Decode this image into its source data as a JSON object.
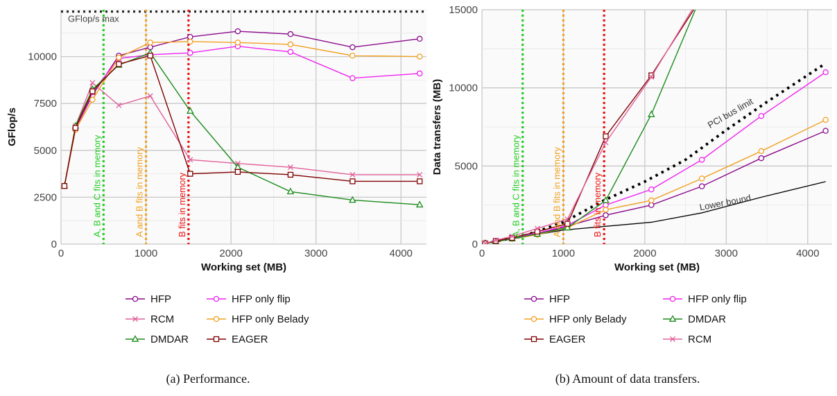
{
  "chart_data": [
    {
      "type": "line",
      "caption": "(a) Performance.",
      "xlabel": "Working set (MB)",
      "ylabel": "GFlop/s",
      "xlim": [
        0,
        4300
      ],
      "ylim": [
        0,
        12500
      ],
      "xticks": [
        0,
        1000,
        2000,
        3000,
        4000
      ],
      "yticks": [
        0,
        2500,
        5000,
        7500,
        10000
      ],
      "ytick_labels": [
        "0",
        "2500",
        "5000",
        "7500",
        "10000"
      ],
      "grid": true,
      "legend_placement": "below",
      "annotations": [
        {
          "text": "GFlop/s max",
          "kind": "hline",
          "y": 12400,
          "color": "#222222"
        },
        {
          "text": "A, B and C fits in memory",
          "kind": "vline",
          "x": 500,
          "color": "#22cc22"
        },
        {
          "text": "A and B fits in memory",
          "kind": "vline",
          "x": 1000,
          "color": "#f0a020"
        },
        {
          "text": "B fits in memory",
          "kind": "vline",
          "x": 1500,
          "color": "#ee1111"
        }
      ],
      "legend_order": [
        "HFP",
        "HFP only flip",
        "RCM",
        "HFP only Belady",
        "DMDAR",
        "EAGER"
      ],
      "series": [
        {
          "name": "HFP",
          "color": "#8b0a8b",
          "marker": "circle",
          "x": [
            40,
            170,
            370,
            680,
            1050,
            1520,
            2080,
            2700,
            3430,
            4220
          ],
          "y": [
            3100,
            6150,
            7950,
            10050,
            10500,
            11050,
            11350,
            11200,
            10500,
            10950
          ]
        },
        {
          "name": "HFP only flip",
          "color": "#ee22ee",
          "marker": "circle",
          "x": [
            40,
            170,
            370,
            680,
            1050,
            1520,
            2080,
            2700,
            3430,
            4220
          ],
          "y": [
            3100,
            6100,
            8100,
            9900,
            10100,
            10200,
            10550,
            10250,
            8850,
            9100
          ]
        },
        {
          "name": "RCM",
          "color": "#e0609a",
          "marker": "x",
          "x": [
            40,
            170,
            370,
            680,
            1050,
            1520,
            2080,
            2700,
            3430,
            4220
          ],
          "y": [
            3100,
            6300,
            8600,
            7400,
            7900,
            4500,
            4300,
            4100,
            3700,
            3700
          ]
        },
        {
          "name": "HFP only Belady",
          "color": "#f0a020",
          "marker": "circle",
          "x": [
            40,
            170,
            370,
            680,
            1050,
            1520,
            2080,
            2700,
            3430,
            4220
          ],
          "y": [
            3100,
            6100,
            7700,
            9950,
            10750,
            10800,
            10750,
            10650,
            10050,
            10000
          ]
        },
        {
          "name": "DMDAR",
          "color": "#1a8a1a",
          "marker": "triangle",
          "x": [
            40,
            170,
            370,
            680,
            1050,
            1520,
            2080,
            2700,
            3430,
            4220
          ],
          "y": [
            3100,
            6300,
            8250,
            9550,
            10200,
            7100,
            4100,
            2800,
            2350,
            2100
          ]
        },
        {
          "name": "EAGER",
          "color": "#800000",
          "marker": "square",
          "x": [
            40,
            170,
            370,
            680,
            1050,
            1520,
            2080,
            2700,
            3430,
            4220
          ],
          "y": [
            3100,
            6200,
            8150,
            9600,
            10050,
            3750,
            3850,
            3700,
            3350,
            3350
          ]
        }
      ]
    },
    {
      "type": "line",
      "caption": "(b) Amount of data transfers.",
      "xlabel": "Working set (MB)",
      "ylabel": "Data transfers (MB)",
      "xlim": [
        0,
        4300
      ],
      "ylim": [
        0,
        15000
      ],
      "xticks": [
        0,
        1000,
        2000,
        3000,
        4000
      ],
      "yticks": [
        0,
        5000,
        10000,
        15000
      ],
      "ytick_labels": [
        "0",
        "5000",
        "10000",
        "15000"
      ],
      "grid": true,
      "legend_placement": "below",
      "annotations": [
        {
          "text": "A, B and C fits in memory",
          "kind": "vline",
          "x": 500,
          "color": "#22cc22"
        },
        {
          "text": "A and B fits in memory",
          "kind": "vline",
          "x": 1000,
          "color": "#f0a020"
        },
        {
          "text": "B fits in memory",
          "kind": "vline",
          "x": 1500,
          "color": "#ee1111"
        },
        {
          "text": "PCI bus limit",
          "kind": "curve",
          "color": "#000000",
          "x": [
            40,
            500,
            1000,
            1500,
            2000,
            2500,
            3000,
            3500,
            4200
          ],
          "y": [
            60,
            500,
            1400,
            2800,
            4000,
            5400,
            7300,
            9100,
            11500
          ]
        },
        {
          "text": "Lower bound",
          "kind": "curve",
          "color": "#000000",
          "x": [
            40,
            1000,
            2080,
            2700,
            3430,
            4220
          ],
          "y": [
            40,
            900,
            1400,
            2000,
            3000,
            4000
          ]
        }
      ],
      "legend_order": [
        "HFP",
        "HFP only flip",
        "HFP only Belady",
        "DMDAR",
        "EAGER",
        "RCM"
      ],
      "series": [
        {
          "name": "HFP",
          "color": "#8b0a8b",
          "marker": "circle",
          "x": [
            40,
            170,
            370,
            680,
            1050,
            1520,
            2080,
            2700,
            3430,
            4220
          ],
          "y": [
            50,
            150,
            350,
            650,
            1150,
            1850,
            2500,
            3700,
            5500,
            7250
          ]
        },
        {
          "name": "HFP only flip",
          "color": "#ee22ee",
          "marker": "circle",
          "x": [
            40,
            170,
            370,
            680,
            1050,
            1520,
            2080,
            2700,
            3430,
            4220
          ],
          "y": [
            50,
            200,
            400,
            700,
            1200,
            2500,
            3500,
            5400,
            8200,
            11000
          ]
        },
        {
          "name": "HFP only Belady",
          "color": "#f0a020",
          "marker": "circle",
          "x": [
            40,
            170,
            370,
            680,
            1050,
            1520,
            2080,
            2700,
            3430,
            4220
          ],
          "y": [
            50,
            150,
            350,
            600,
            1050,
            2200,
            2800,
            4200,
            5950,
            7950
          ]
        },
        {
          "name": "DMDAR",
          "color": "#1a8a1a",
          "marker": "triangle",
          "x": [
            40,
            170,
            370,
            680,
            1050,
            1520,
            2080,
            2620
          ],
          "y": [
            50,
            150,
            350,
            650,
            1050,
            2800,
            8300,
            15000
          ]
        },
        {
          "name": "EAGER",
          "color": "#800000",
          "marker": "square",
          "x": [
            40,
            170,
            370,
            680,
            1050,
            1520,
            2080,
            2600
          ],
          "y": [
            50,
            200,
            400,
            800,
            1300,
            6900,
            10800,
            15000
          ]
        },
        {
          "name": "RCM",
          "color": "#e0609a",
          "marker": "x",
          "x": [
            40,
            170,
            370,
            680,
            1050,
            1520,
            2080,
            2580
          ],
          "y": [
            50,
            250,
            500,
            1000,
            1600,
            6500,
            10700,
            15000
          ]
        }
      ]
    }
  ]
}
